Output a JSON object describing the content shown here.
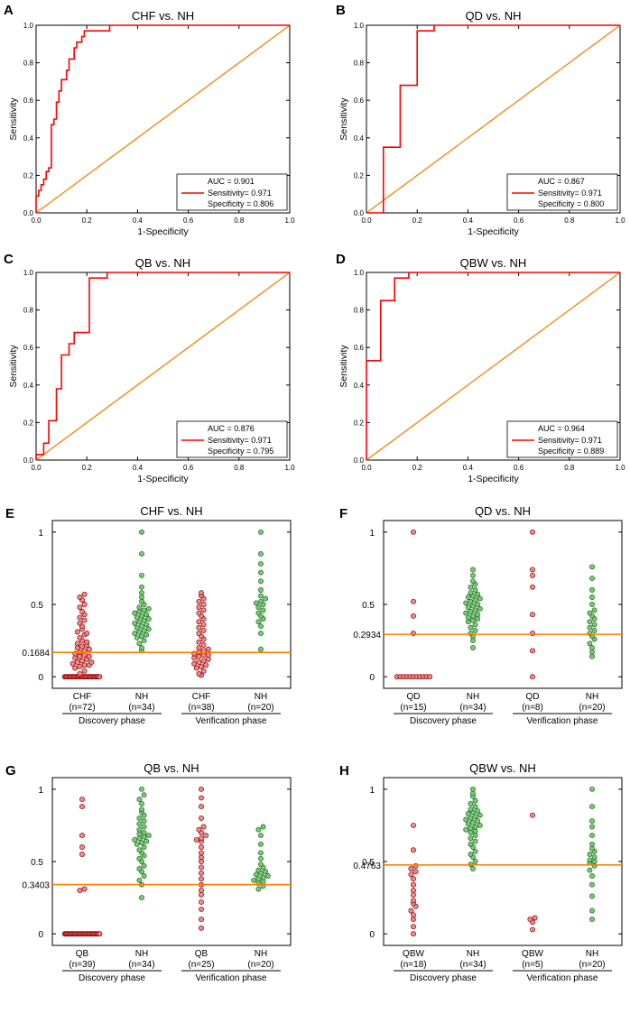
{
  "figure": {
    "panels_order": [
      "A",
      "B",
      "C",
      "D",
      "E",
      "F",
      "G",
      "H"
    ]
  },
  "colors": {
    "roc_curve": "#ff0000",
    "diagonal": "#ff8000",
    "threshold": "#ff8000",
    "red_point_fill": "#f08080",
    "red_point_stroke": "#8b0000",
    "green_point_fill": "#6cc26c",
    "green_point_stroke": "#1f6b1f",
    "axis": "#000000"
  },
  "chart_data": [
    {
      "id": "A",
      "type": "line",
      "title": "CHF vs. NH",
      "xlabel": "1-Specificity",
      "ylabel": "Sensitivity",
      "xlim": [
        0,
        1
      ],
      "ylim": [
        0,
        1
      ],
      "xticks": [
        "0.0",
        "0.2",
        "0.4",
        "0.6",
        "0.8",
        "1.0"
      ],
      "yticks": [
        "0.0",
        "0.2",
        "0.4",
        "0.6",
        "0.8",
        "1.0"
      ],
      "roc": [
        [
          0,
          0
        ],
        [
          0,
          0.09
        ],
        [
          0.01,
          0.09
        ],
        [
          0.01,
          0.12
        ],
        [
          0.02,
          0.12
        ],
        [
          0.02,
          0.15
        ],
        [
          0.03,
          0.15
        ],
        [
          0.03,
          0.18
        ],
        [
          0.04,
          0.18
        ],
        [
          0.04,
          0.22
        ],
        [
          0.05,
          0.22
        ],
        [
          0.05,
          0.24
        ],
        [
          0.06,
          0.24
        ],
        [
          0.06,
          0.47
        ],
        [
          0.07,
          0.47
        ],
        [
          0.07,
          0.5
        ],
        [
          0.08,
          0.5
        ],
        [
          0.08,
          0.59
        ],
        [
          0.09,
          0.59
        ],
        [
          0.09,
          0.65
        ],
        [
          0.1,
          0.65
        ],
        [
          0.1,
          0.71
        ],
        [
          0.12,
          0.71
        ],
        [
          0.12,
          0.76
        ],
        [
          0.13,
          0.76
        ],
        [
          0.13,
          0.82
        ],
        [
          0.15,
          0.82
        ],
        [
          0.15,
          0.88
        ],
        [
          0.16,
          0.88
        ],
        [
          0.16,
          0.91
        ],
        [
          0.18,
          0.91
        ],
        [
          0.18,
          0.94
        ],
        [
          0.19,
          0.94
        ],
        [
          0.19,
          0.97
        ],
        [
          0.29,
          0.97
        ],
        [
          0.29,
          1.0
        ],
        [
          1.0,
          1.0
        ]
      ],
      "legend": {
        "auc": "AUC = 0.901",
        "sensitivity": "Sensitivity= 0.971",
        "specificity": "Specificity = 0.806"
      }
    },
    {
      "id": "B",
      "type": "line",
      "title": "QD vs. NH",
      "xlabel": "1-Specificity",
      "ylabel": "Sensitivity",
      "xlim": [
        0,
        1
      ],
      "ylim": [
        0,
        1
      ],
      "xticks": [
        "0.0",
        "0.2",
        "0.4",
        "0.6",
        "0.8",
        "1.0"
      ],
      "yticks": [
        "0.0",
        "0.2",
        "0.4",
        "0.6",
        "0.8",
        "1.0"
      ],
      "roc": [
        [
          0,
          0
        ],
        [
          0.067,
          0
        ],
        [
          0.067,
          0.35
        ],
        [
          0.133,
          0.35
        ],
        [
          0.133,
          0.68
        ],
        [
          0.2,
          0.68
        ],
        [
          0.2,
          0.97
        ],
        [
          0.267,
          0.97
        ],
        [
          0.267,
          1.0
        ],
        [
          1.0,
          1.0
        ]
      ],
      "legend": {
        "auc": "AUC = 0.867",
        "sensitivity": "Sensitivity= 0.971",
        "specificity": "Specificity = 0.800"
      }
    },
    {
      "id": "C",
      "type": "line",
      "title": "QB vs. NH",
      "xlabel": "1-Specificity",
      "ylabel": "Sensitivity",
      "xlim": [
        0,
        1
      ],
      "ylim": [
        0,
        1
      ],
      "xticks": [
        "0.0",
        "0.2",
        "0.4",
        "0.6",
        "0.8",
        "1.0"
      ],
      "yticks": [
        "0.0",
        "0.2",
        "0.4",
        "0.6",
        "0.8",
        "1.0"
      ],
      "roc": [
        [
          0,
          0
        ],
        [
          0,
          0.03
        ],
        [
          0.03,
          0.03
        ],
        [
          0.03,
          0.09
        ],
        [
          0.05,
          0.09
        ],
        [
          0.05,
          0.21
        ],
        [
          0.08,
          0.21
        ],
        [
          0.08,
          0.38
        ],
        [
          0.1,
          0.38
        ],
        [
          0.1,
          0.56
        ],
        [
          0.13,
          0.56
        ],
        [
          0.13,
          0.62
        ],
        [
          0.15,
          0.62
        ],
        [
          0.15,
          0.68
        ],
        [
          0.21,
          0.68
        ],
        [
          0.21,
          0.97
        ],
        [
          0.28,
          0.97
        ],
        [
          0.28,
          1.0
        ],
        [
          1.0,
          1.0
        ]
      ],
      "legend": {
        "auc": "AUC = 0.876",
        "sensitivity": "Sensitivity= 0.971",
        "specificity": "Specificity = 0.795"
      }
    },
    {
      "id": "D",
      "type": "line",
      "title": "QBW vs. NH",
      "xlabel": "1-Specificity",
      "ylabel": "Sensitivity",
      "xlim": [
        0,
        1
      ],
      "ylim": [
        0,
        1
      ],
      "xticks": [
        "0.0",
        "0.2",
        "0.4",
        "0.6",
        "0.8",
        "1.0"
      ],
      "yticks": [
        "0.0",
        "0.2",
        "0.4",
        "0.6",
        "0.8",
        "1.0"
      ],
      "roc": [
        [
          0,
          0
        ],
        [
          0,
          0.53
        ],
        [
          0.056,
          0.53
        ],
        [
          0.056,
          0.85
        ],
        [
          0.111,
          0.85
        ],
        [
          0.111,
          0.97
        ],
        [
          0.167,
          0.97
        ],
        [
          0.167,
          1.0
        ],
        [
          1.0,
          1.0
        ]
      ],
      "legend": {
        "auc": "AUC = 0.964",
        "sensitivity": "Sensitivity= 0.971",
        "specificity": "Specificity = 0.889"
      }
    },
    {
      "id": "E",
      "type": "scatter",
      "title": "CHF vs. NH",
      "ylim": [
        -0.08,
        1.08
      ],
      "yticks": [
        "0",
        "0.5",
        "1"
      ],
      "threshold": {
        "value": 0.1684,
        "label": "0.1684"
      },
      "groups": [
        {
          "label": "CHF",
          "n": "(n=72)",
          "color": "red",
          "values": [
            0,
            0,
            0,
            0,
            0,
            0,
            0,
            0,
            0,
            0,
            0,
            0,
            0,
            0,
            0,
            0,
            0,
            0,
            0,
            0,
            0,
            0,
            0,
            0,
            0,
            0,
            0,
            0,
            0,
            0,
            0,
            0.02,
            0.04,
            0.06,
            0.07,
            0.08,
            0.09,
            0.1,
            0.11,
            0.12,
            0.13,
            0.14,
            0.15,
            0.16,
            0.17,
            0.18,
            0.19,
            0.2,
            0.21,
            0.22,
            0.23,
            0.25,
            0.27,
            0.29,
            0.31,
            0.33,
            0.35,
            0.37,
            0.39,
            0.41,
            0.43,
            0.45,
            0.48,
            0.5,
            0.53,
            0.55,
            0.57,
            0.3,
            0.24,
            0.14,
            0.1,
            0.08
          ]
        },
        {
          "label": "NH",
          "n": "(n=34)",
          "color": "green",
          "values": [
            0.18,
            0.2,
            0.23,
            0.25,
            0.27,
            0.28,
            0.29,
            0.3,
            0.31,
            0.32,
            0.33,
            0.34,
            0.35,
            0.36,
            0.37,
            0.38,
            0.39,
            0.4,
            0.41,
            0.42,
            0.43,
            0.44,
            0.45,
            0.46,
            0.47,
            0.48,
            0.5,
            0.52,
            0.55,
            0.58,
            0.62,
            0.7,
            0.85,
            1.0
          ]
        },
        {
          "label": "CHF",
          "n": "(n=38)",
          "color": "red",
          "values": [
            0.01,
            0.02,
            0.04,
            0.06,
            0.07,
            0.08,
            0.09,
            0.1,
            0.11,
            0.12,
            0.13,
            0.14,
            0.15,
            0.16,
            0.17,
            0.18,
            0.19,
            0.2,
            0.22,
            0.24,
            0.26,
            0.28,
            0.3,
            0.32,
            0.34,
            0.36,
            0.38,
            0.4,
            0.42,
            0.44,
            0.46,
            0.48,
            0.5,
            0.52,
            0.54,
            0.56,
            0.58,
            0.15
          ]
        },
        {
          "label": "NH",
          "n": "(n=20)",
          "color": "green",
          "values": [
            0.19,
            0.3,
            0.35,
            0.38,
            0.4,
            0.42,
            0.44,
            0.46,
            0.48,
            0.5,
            0.51,
            0.52,
            0.54,
            0.56,
            0.6,
            0.66,
            0.72,
            0.78,
            0.85,
            1.0
          ]
        }
      ],
      "phases": [
        "Discovery phase",
        "Verification phase"
      ]
    },
    {
      "id": "F",
      "type": "scatter",
      "title": "QD vs. NH",
      "ylim": [
        -0.08,
        1.08
      ],
      "yticks": [
        "0",
        "0.5",
        "1"
      ],
      "threshold": {
        "value": 0.2934,
        "label": "0.2934"
      },
      "groups": [
        {
          "label": "QD",
          "n": "(n=15)",
          "color": "red",
          "values": [
            0,
            0,
            0,
            0,
            0,
            0,
            0,
            0,
            0,
            0,
            0,
            0.3,
            0.42,
            0.52,
            1.0
          ]
        },
        {
          "label": "NH",
          "n": "(n=34)",
          "color": "green",
          "values": [
            0.2,
            0.25,
            0.28,
            0.3,
            0.32,
            0.34,
            0.36,
            0.38,
            0.39,
            0.4,
            0.41,
            0.42,
            0.43,
            0.44,
            0.45,
            0.46,
            0.47,
            0.48,
            0.49,
            0.5,
            0.51,
            0.52,
            0.53,
            0.54,
            0.55,
            0.56,
            0.57,
            0.58,
            0.6,
            0.62,
            0.64,
            0.66,
            0.7,
            0.74
          ]
        },
        {
          "label": "QD",
          "n": "(n=8)",
          "color": "red",
          "values": [
            0,
            0.18,
            0.3,
            0.43,
            0.62,
            0.7,
            0.74,
            1.0
          ]
        },
        {
          "label": "NH",
          "n": "(n=20)",
          "color": "green",
          "values": [
            0.14,
            0.17,
            0.2,
            0.23,
            0.26,
            0.28,
            0.3,
            0.32,
            0.34,
            0.36,
            0.38,
            0.4,
            0.42,
            0.44,
            0.46,
            0.5,
            0.55,
            0.6,
            0.68,
            0.76
          ]
        }
      ],
      "phases": [
        "Discovery phase",
        "Verification phase"
      ]
    },
    {
      "id": "G",
      "type": "scatter",
      "title": "QB vs. NH",
      "ylim": [
        -0.08,
        1.08
      ],
      "yticks": [
        "0",
        "0.5",
        "1"
      ],
      "threshold": {
        "value": 0.3403,
        "label": "0.3403"
      },
      "groups": [
        {
          "label": "QB",
          "n": "(n=39)",
          "color": "red",
          "values": [
            0,
            0,
            0,
            0,
            0,
            0,
            0,
            0,
            0,
            0,
            0,
            0,
            0,
            0,
            0,
            0,
            0,
            0,
            0,
            0,
            0,
            0,
            0,
            0,
            0,
            0,
            0,
            0,
            0,
            0,
            0,
            0,
            0.3,
            0.31,
            0.55,
            0.6,
            0.68,
            0.88,
            0.93
          ]
        },
        {
          "label": "NH",
          "n": "(n=34)",
          "color": "green",
          "values": [
            0.25,
            0.34,
            0.37,
            0.4,
            0.43,
            0.45,
            0.47,
            0.5,
            0.52,
            0.54,
            0.56,
            0.58,
            0.6,
            0.62,
            0.63,
            0.64,
            0.65,
            0.66,
            0.67,
            0.68,
            0.69,
            0.7,
            0.72,
            0.74,
            0.76,
            0.78,
            0.8,
            0.82,
            0.84,
            0.86,
            0.9,
            0.93,
            0.96,
            1.0
          ]
        },
        {
          "label": "QB",
          "n": "(n=25)",
          "color": "red",
          "values": [
            0.04,
            0.1,
            0.17,
            0.22,
            0.27,
            0.3,
            0.34,
            0.38,
            0.42,
            0.46,
            0.5,
            0.53,
            0.56,
            0.6,
            0.64,
            0.65,
            0.66,
            0.68,
            0.7,
            0.72,
            0.74,
            0.8,
            0.88,
            0.94,
            1.0
          ]
        },
        {
          "label": "NH",
          "n": "(n=20)",
          "color": "green",
          "values": [
            0.31,
            0.33,
            0.35,
            0.36,
            0.37,
            0.38,
            0.39,
            0.4,
            0.41,
            0.42,
            0.43,
            0.44,
            0.46,
            0.48,
            0.52,
            0.56,
            0.62,
            0.68,
            0.72,
            0.74
          ]
        }
      ],
      "phases": [
        "Discovery phase",
        "Verification phase"
      ]
    },
    {
      "id": "H",
      "type": "scatter",
      "title": "QBW vs. NH",
      "ylim": [
        -0.08,
        1.08
      ],
      "yticks": [
        "0",
        "0.5",
        "1"
      ],
      "threshold": {
        "value": 0.4763,
        "label": "0.4763"
      },
      "groups": [
        {
          "label": "QBW",
          "n": "(n=18)",
          "color": "red",
          "values": [
            0.0,
            0.05,
            0.1,
            0.13,
            0.16,
            0.19,
            0.21,
            0.23,
            0.27,
            0.3,
            0.34,
            0.38,
            0.41,
            0.43,
            0.45,
            0.47,
            0.58,
            0.75
          ]
        },
        {
          "label": "NH",
          "n": "(n=34)",
          "color": "green",
          "values": [
            0.45,
            0.48,
            0.5,
            0.53,
            0.55,
            0.57,
            0.6,
            0.62,
            0.64,
            0.66,
            0.68,
            0.7,
            0.71,
            0.72,
            0.73,
            0.74,
            0.75,
            0.76,
            0.77,
            0.78,
            0.79,
            0.8,
            0.81,
            0.82,
            0.83,
            0.84,
            0.85,
            0.86,
            0.88,
            0.9,
            0.92,
            0.95,
            0.97,
            1.0
          ]
        },
        {
          "label": "QBW",
          "n": "(n=5)",
          "color": "red",
          "values": [
            0.03,
            0.08,
            0.1,
            0.11,
            0.82
          ]
        },
        {
          "label": "NH",
          "n": "(n=20)",
          "color": "green",
          "values": [
            0.1,
            0.16,
            0.26,
            0.34,
            0.4,
            0.44,
            0.47,
            0.49,
            0.5,
            0.51,
            0.53,
            0.55,
            0.57,
            0.59,
            0.62,
            0.68,
            0.74,
            0.78,
            0.88,
            1.0
          ]
        }
      ],
      "phases": [
        "Discovery phase",
        "Verification phase"
      ]
    }
  ]
}
